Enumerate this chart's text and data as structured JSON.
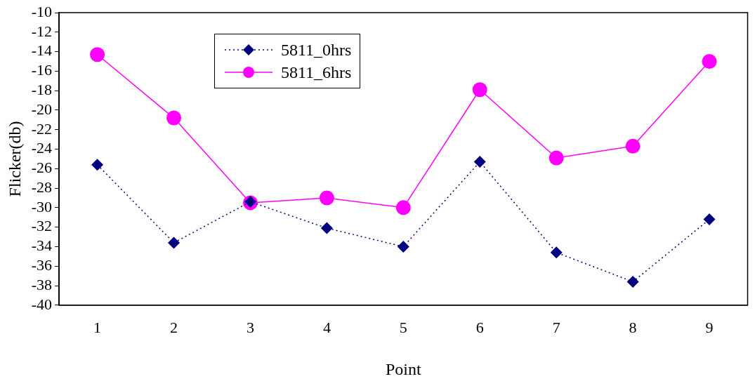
{
  "chart_data": {
    "type": "line",
    "xlabel": "Point",
    "ylabel": "Flicker(db)",
    "categories": [
      "1",
      "2",
      "3",
      "4",
      "5",
      "6",
      "7",
      "8",
      "9"
    ],
    "series": [
      {
        "name": "5811_0hrs",
        "color": "#000080",
        "marker": "diamond",
        "line_style": "dotted",
        "values": [
          -25.6,
          -33.6,
          -29.4,
          -32.1,
          -34.0,
          -25.3,
          -34.6,
          -37.6,
          -31.2
        ]
      },
      {
        "name": "5811_6hrs",
        "color": "#ff00ff",
        "marker": "circle",
        "line_style": "solid",
        "values": [
          -14.3,
          -20.8,
          -29.5,
          -29.0,
          -30.0,
          -17.9,
          -24.9,
          -23.7,
          -15.0
        ]
      }
    ],
    "ylim": [
      -40,
      -10
    ],
    "yticks": [
      -40,
      -38,
      -36,
      -34,
      -32,
      -30,
      -28,
      -26,
      -24,
      -22,
      -20,
      -18,
      -16,
      -14,
      -12,
      -10
    ],
    "grid": false,
    "legend": "top left"
  }
}
